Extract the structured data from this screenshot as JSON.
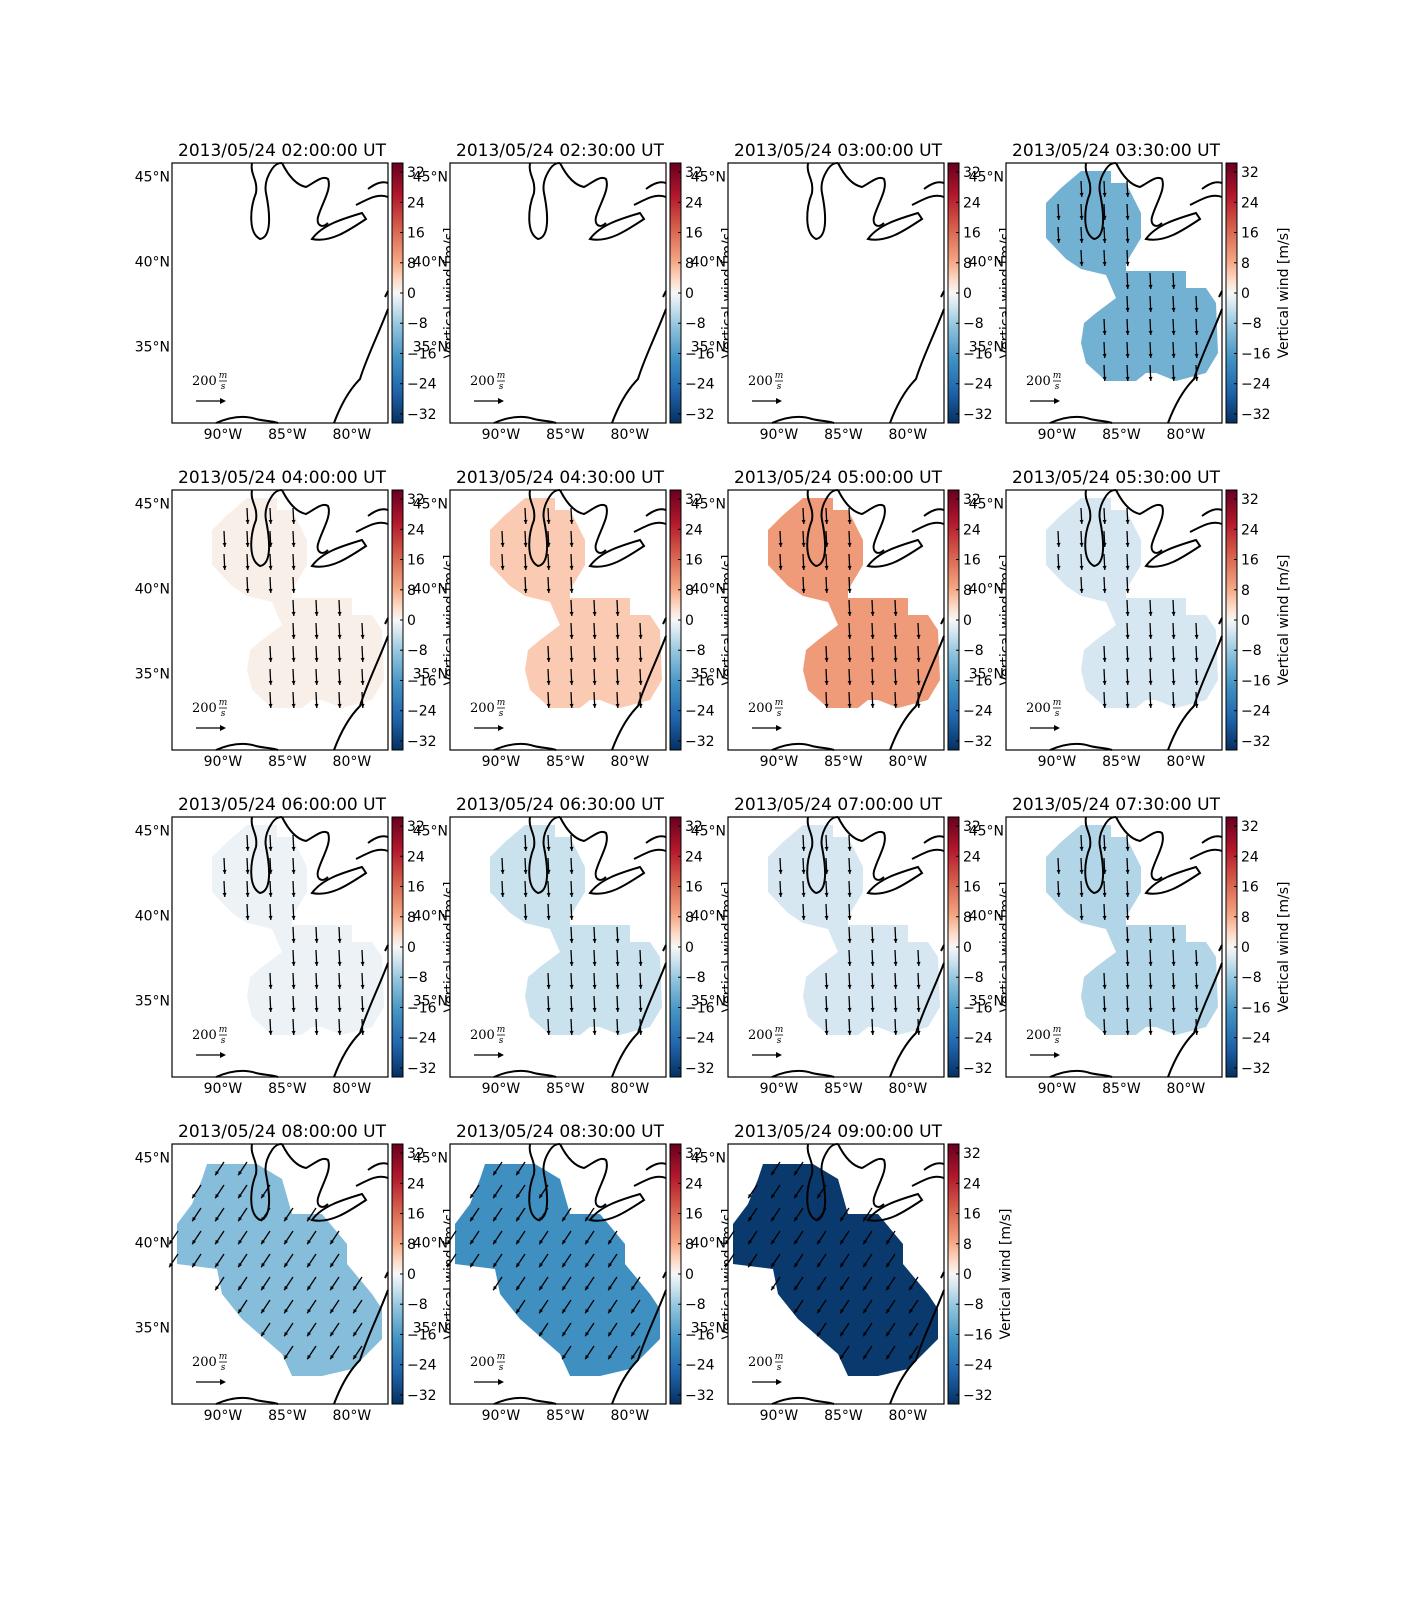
{
  "colorbar": {
    "label": "Vertical wind [m/s]",
    "lim": [
      -34.4,
      34.4
    ],
    "ticks": [
      32,
      24,
      16,
      8,
      0,
      {
        "value": -8,
        "label": "−8"
      },
      {
        "value": -16,
        "label": "−16"
      },
      {
        "value": -24,
        "label": "−24"
      },
      {
        "value": -32,
        "label": "−32"
      }
    ]
  },
  "lat_lim": [
    30.5,
    45.8
  ],
  "lon_lim": [
    -93.95,
    -77.2
  ],
  "lat_ticks": [
    {
      "value": 45,
      "label": "45°N"
    },
    {
      "value": 40,
      "label": "40°N"
    },
    {
      "value": 35,
      "label": "35°N"
    }
  ],
  "lon_ticks": [
    {
      "value": -90,
      "label": "90°W"
    },
    {
      "value": -85,
      "label": "85°W"
    },
    {
      "value": -80,
      "label": "80°W"
    }
  ],
  "quiver_key": {
    "value": 200,
    "unit_top": "m",
    "unit_bottom": "s"
  },
  "panels": [
    {
      "title": "2013/05/24 02:00:00 UT",
      "wind": null
    },
    {
      "title": "2013/05/24 02:30:00 UT",
      "wind": null
    },
    {
      "title": "2013/05/24 03:00:00 UT",
      "wind": null
    },
    {
      "title": "2013/05/24 03:30:00 UT",
      "wind": -12,
      "region": "lobes"
    },
    {
      "title": "2013/05/24 04:00:00 UT",
      "wind": 1,
      "region": "lobes"
    },
    {
      "title": "2013/05/24 04:30:00 UT",
      "wind": 5,
      "region": "lobes"
    },
    {
      "title": "2013/05/24 05:00:00 UT",
      "wind": 10,
      "region": "lobes"
    },
    {
      "title": "2013/05/24 05:30:00 UT",
      "wind": -3,
      "region": "lobes"
    },
    {
      "title": "2013/05/24 06:00:00 UT",
      "wind": -1,
      "region": "lobes"
    },
    {
      "title": "2013/05/24 06:30:00 UT",
      "wind": -4,
      "region": "lobes"
    },
    {
      "title": "2013/05/24 07:00:00 UT",
      "wind": -3,
      "region": "lobes"
    },
    {
      "title": "2013/05/24 07:30:00 UT",
      "wind": -6,
      "region": "lobes"
    },
    {
      "title": "2013/05/24 08:00:00 UT",
      "wind": -10,
      "region": "band"
    },
    {
      "title": "2013/05/24 08:30:00 UT",
      "wind": -18,
      "region": "band"
    },
    {
      "title": "2013/05/24 09:00:00 UT",
      "wind": -33,
      "region": "band"
    }
  ]
}
